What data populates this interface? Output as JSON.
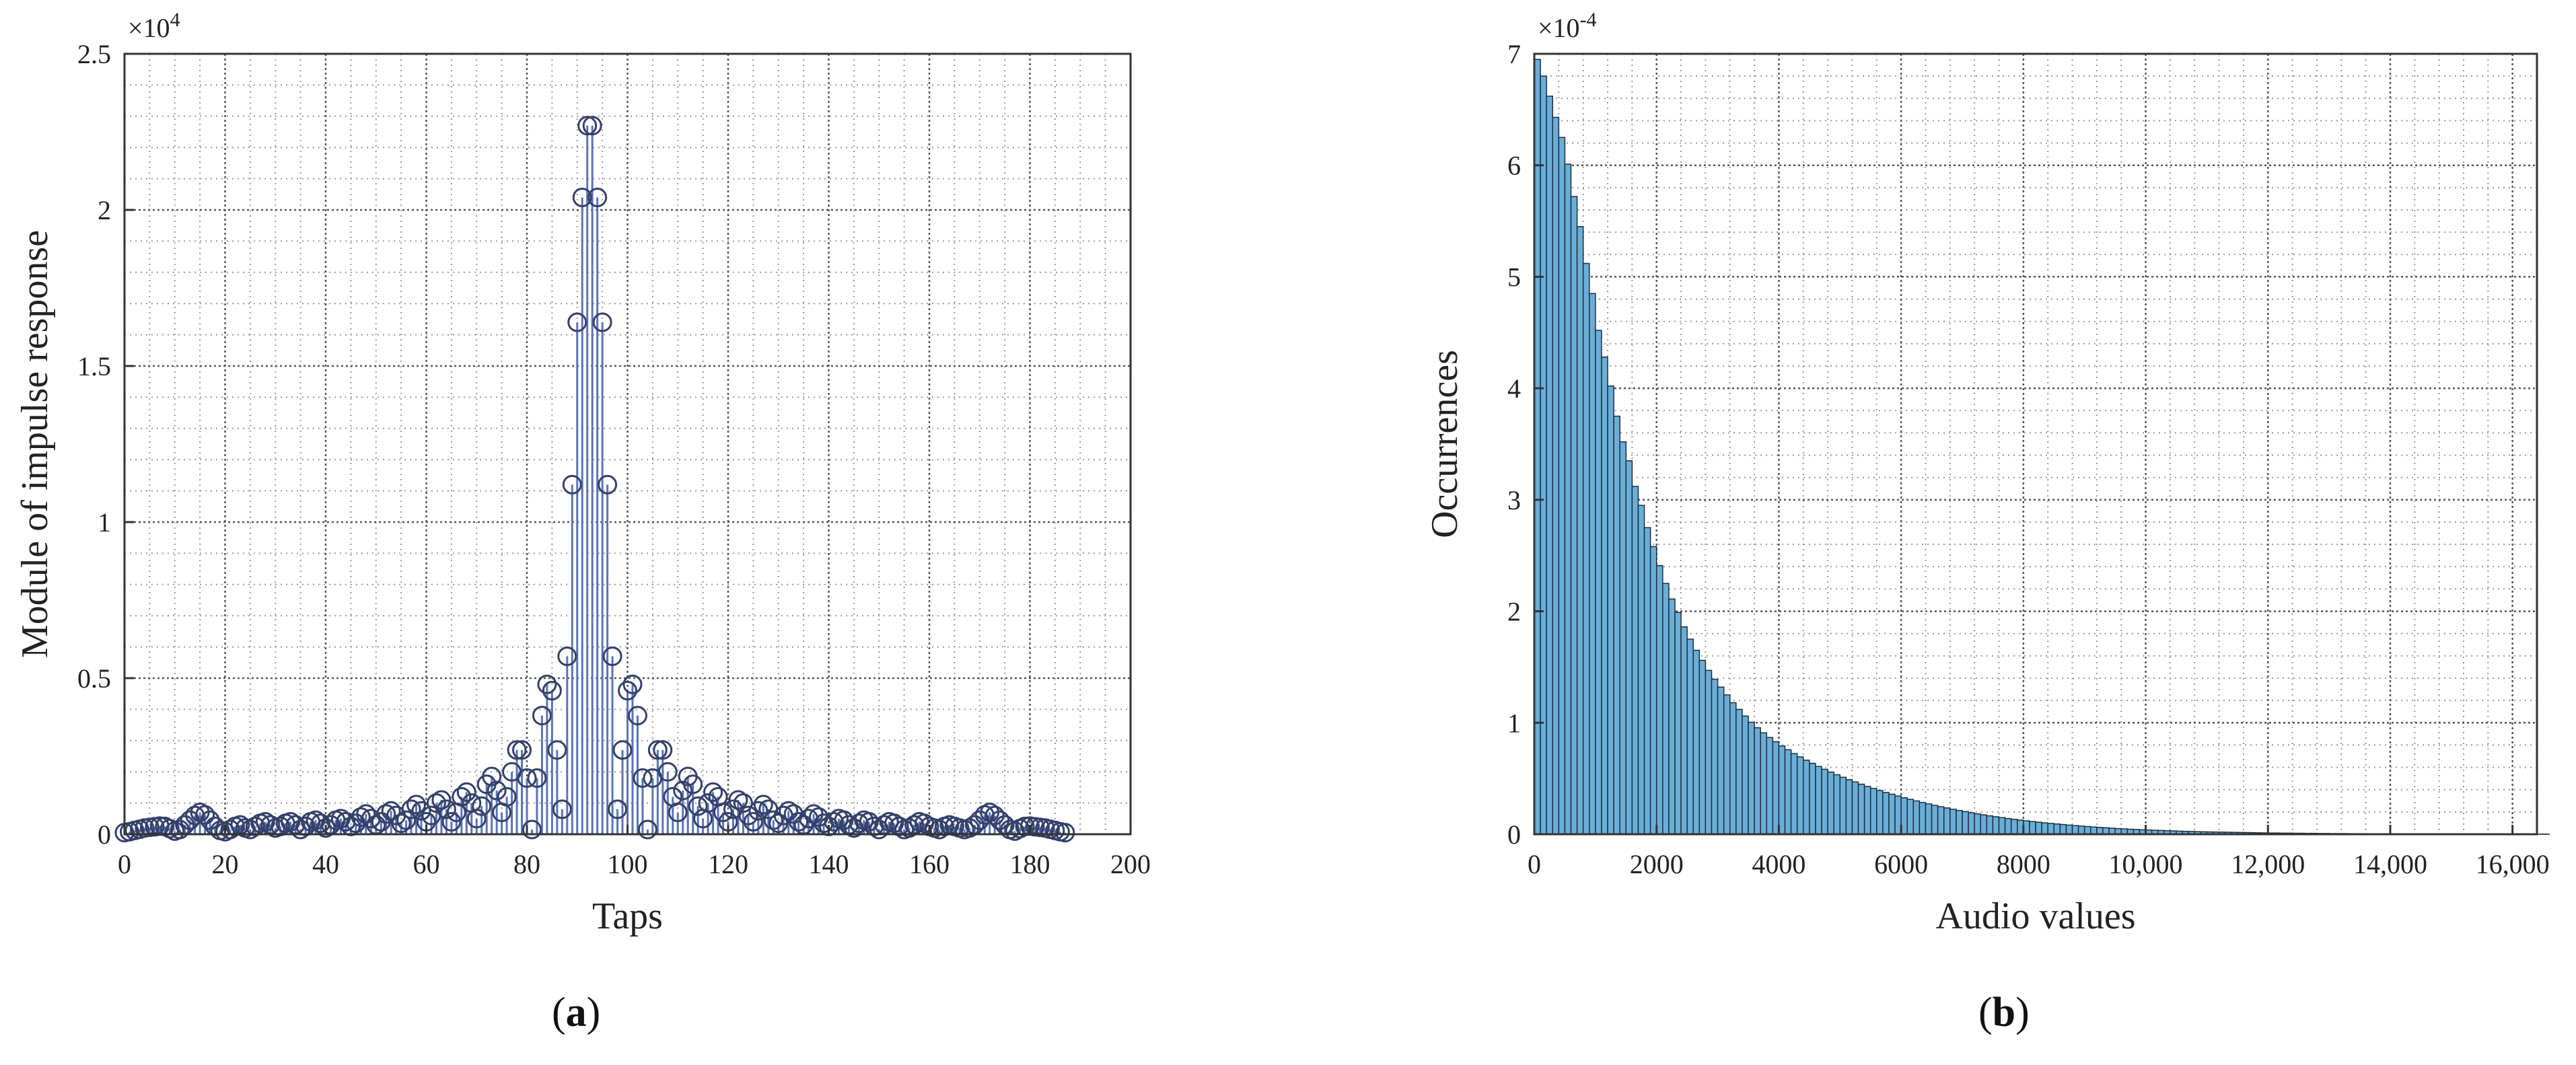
{
  "colors": {
    "stem": "#5b74b8",
    "marker": "#34416a",
    "bar_fill": "#6aaed8",
    "bar_edge": "#1f2d3a",
    "major_grid": "#555555",
    "minor_grid": "#999999",
    "axis": "#333333"
  },
  "panels": [
    {
      "label": "a"
    },
    {
      "label": "b"
    }
  ],
  "chart_data": [
    {
      "type": "scatter",
      "style": "stem",
      "title": "",
      "xlabel": "Taps",
      "ylabel": "Module of impulse response",
      "y_multiplier": "×10^4",
      "xlim": [
        0,
        200
      ],
      "ylim": [
        0,
        25000
      ],
      "xticks": [
        0,
        20,
        40,
        60,
        80,
        100,
        120,
        140,
        160,
        180,
        200
      ],
      "xticklabels": [
        "0",
        "20",
        "40",
        "60",
        "80",
        "100",
        "120",
        "140",
        "160",
        "180",
        "200"
      ],
      "yticks": [
        0,
        5000,
        10000,
        15000,
        20000,
        25000
      ],
      "yticklabels": [
        "0",
        "0.5",
        "1",
        "1.5",
        "2",
        "2.5"
      ],
      "grid": true,
      "x": [
        0,
        1,
        2,
        3,
        4,
        5,
        6,
        7,
        8,
        9,
        10,
        11,
        12,
        13,
        14,
        15,
        16,
        17,
        18,
        19,
        20,
        21,
        22,
        23,
        24,
        25,
        26,
        27,
        28,
        29,
        30,
        31,
        32,
        33,
        34,
        35,
        36,
        37,
        38,
        39,
        40,
        41,
        42,
        43,
        44,
        45,
        46,
        47,
        48,
        49,
        50,
        51,
        52,
        53,
        54,
        55,
        56,
        57,
        58,
        59,
        60,
        61,
        62,
        63,
        64,
        65,
        66,
        67,
        68,
        69,
        70,
        71,
        72,
        73,
        74,
        75,
        76,
        77,
        78,
        79,
        80,
        81,
        82,
        83,
        84,
        85,
        86,
        87,
        88,
        89,
        90,
        91,
        92,
        93,
        94,
        95,
        96,
        97,
        98,
        99,
        100,
        101,
        102,
        103,
        104,
        105,
        106,
        107,
        108,
        109,
        110,
        111,
        112,
        113,
        114,
        115,
        116,
        117,
        118,
        119,
        120,
        121,
        122,
        123,
        124,
        125,
        126,
        127,
        128,
        129,
        130,
        131,
        132,
        133,
        134,
        135,
        136,
        137,
        138,
        139,
        140,
        141,
        142,
        143,
        144,
        145,
        146,
        147,
        148,
        149,
        150,
        151,
        152,
        153,
        154,
        155,
        156,
        157,
        158,
        159,
        160,
        161,
        162,
        163,
        164,
        165,
        166,
        167,
        168,
        169,
        170,
        171,
        172,
        173,
        174,
        175,
        176,
        177,
        178,
        179,
        180,
        181,
        182,
        183,
        184,
        185,
        186,
        187
      ],
      "y": [
        50,
        80,
        120,
        160,
        200,
        220,
        240,
        260,
        250,
        180,
        100,
        150,
        300,
        450,
        600,
        700,
        620,
        450,
        250,
        120,
        80,
        150,
        250,
        300,
        200,
        150,
        250,
        350,
        400,
        300,
        200,
        250,
        350,
        400,
        300,
        150,
        250,
        400,
        450,
        350,
        200,
        300,
        450,
        500,
        400,
        250,
        350,
        550,
        650,
        500,
        300,
        400,
        650,
        750,
        600,
        350,
        450,
        800,
        950,
        750,
        400,
        600,
        1000,
        1100,
        800,
        400,
        700,
        1200,
        1350,
        1000,
        500,
        900,
        1600,
        1850,
        1400,
        700,
        1200,
        2000,
        2700,
        2700,
        1800,
        150,
        1800,
        3800,
        4800,
        4600,
        2700,
        800,
        5700,
        11200,
        16400,
        20400,
        22700,
        22700,
        20400,
        16400,
        11200,
        5700,
        800,
        2700,
        4600,
        4800,
        3800,
        1800,
        150,
        1800,
        2700,
        2700,
        2000,
        1200,
        700,
        1400,
        1850,
        1600,
        900,
        500,
        1000,
        1350,
        1200,
        700,
        400,
        800,
        1100,
        1000,
        600,
        400,
        750,
        950,
        800,
        450,
        350,
        600,
        750,
        650,
        400,
        300,
        500,
        650,
        550,
        350,
        250,
        400,
        500,
        450,
        300,
        200,
        350,
        450,
        400,
        250,
        150,
        300,
        400,
        350,
        250,
        150,
        200,
        300,
        400,
        350,
        250,
        200,
        150,
        250,
        300,
        250,
        200,
        150,
        200,
        300,
        450,
        620,
        700,
        600,
        450,
        300,
        150,
        100,
        180,
        250,
        260,
        240,
        220,
        200,
        160,
        120,
        80,
        50
      ]
    },
    {
      "type": "bar",
      "style": "histogram",
      "title": "",
      "xlabel": "Audio values",
      "ylabel": "Occurrences",
      "y_multiplier": "×10^-4",
      "xlim": [
        0,
        16400
      ],
      "ylim": [
        0,
        0.0007
      ],
      "xticks": [
        0,
        2000,
        4000,
        6000,
        8000,
        10000,
        12000,
        14000,
        16000
      ],
      "xticklabels": [
        "0",
        "2000",
        "4000",
        "6000",
        "8000",
        "10,000",
        "12,000",
        "14,000",
        "16,000"
      ],
      "yticks": [
        0,
        0.0001,
        0.0002,
        0.0003,
        0.0004,
        0.0005,
        0.0006,
        0.0007
      ],
      "yticklabels": [
        "0",
        "1",
        "2",
        "3",
        "4",
        "5",
        "6",
        "7"
      ],
      "grid": true,
      "bin_width": 100,
      "bin_start": 0,
      "values": [
        0.000695,
        0.00068,
        0.000662,
        0.000643,
        0.000625,
        0.000601,
        0.000572,
        0.000545,
        0.000512,
        0.000485,
        0.000452,
        0.000428,
        0.000402,
        0.000375,
        0.000352,
        0.000335,
        0.000312,
        0.000295,
        0.000275,
        0.000258,
        0.000241,
        0.000225,
        0.000211,
        0.000199,
        0.000186,
        0.000175,
        0.000165,
        0.000156,
        0.000147,
        0.000139,
        0.000132,
        0.000125,
        0.000118,
        0.000112,
        0.000106,
        0.0001005,
        9.55e-05,
        9.1e-05,
        8.68e-05,
        8.3e-05,
        7.92e-05,
        7.58e-05,
        7.24e-05,
        6.94e-05,
        6.64e-05,
        6.36e-05,
        6.08e-05,
        5.83e-05,
        5.58e-05,
        5.34e-05,
        5.11e-05,
        4.9e-05,
        4.69e-05,
        4.49e-05,
        4.29e-05,
        4.11e-05,
        3.93e-05,
        3.75e-05,
        3.59e-05,
        3.43e-05,
        3.28e-05,
        3.13e-05,
        2.99e-05,
        2.85e-05,
        2.72e-05,
        2.59e-05,
        2.47e-05,
        2.36e-05,
        2.24e-05,
        2.13e-05,
        2.03e-05,
        1.93e-05,
        1.83e-05,
        1.74e-05,
        1.65e-05,
        1.57e-05,
        1.49e-05,
        1.41e-05,
        1.34e-05,
        1.27e-05,
        1.2e-05,
        1.14e-05,
        1.08e-05,
        1.02e-05,
        9.7e-06,
        9.2e-06,
        8.7e-06,
        8.2e-06,
        7.7e-06,
        7.3e-06,
        6.9e-06,
        6.5e-06,
        6.1e-06,
        5.8e-06,
        5.4e-06,
        5.1e-06,
        4.8e-06,
        4.5e-06,
        4.3e-06,
        4e-06,
        3.8e-06,
        3.6e-06,
        3.4e-06,
        3.2e-06,
        3e-06,
        2.8e-06,
        2.6e-06,
        2.5e-06,
        2.3e-06,
        2.2e-06,
        2.1e-06,
        2e-06,
        1.9e-06,
        1.8e-06,
        1.7e-06,
        1.6e-06,
        1.5e-06,
        1.4e-06,
        1.3e-06,
        1.2e-06,
        1.1e-06,
        1.1e-06,
        1e-06,
        1e-06,
        9e-07,
        9e-07,
        8e-07,
        8e-07,
        7e-07,
        7e-07,
        6e-07,
        6e-07,
        6e-07,
        5e-07,
        5e-07,
        5e-07,
        4e-07,
        4e-07,
        4e-07,
        4e-07,
        3e-07,
        3e-07,
        3e-07,
        3e-07,
        3e-07,
        2e-07,
        2e-07,
        2e-07,
        2e-07,
        2e-07,
        2e-07,
        2e-07,
        1e-07,
        1e-07,
        1e-07,
        1e-07,
        1e-07,
        1e-07,
        1e-07,
        1e-07,
        1e-07,
        1e-07,
        1e-07,
        1e-07,
        1e-07,
        1e-07
      ]
    }
  ]
}
